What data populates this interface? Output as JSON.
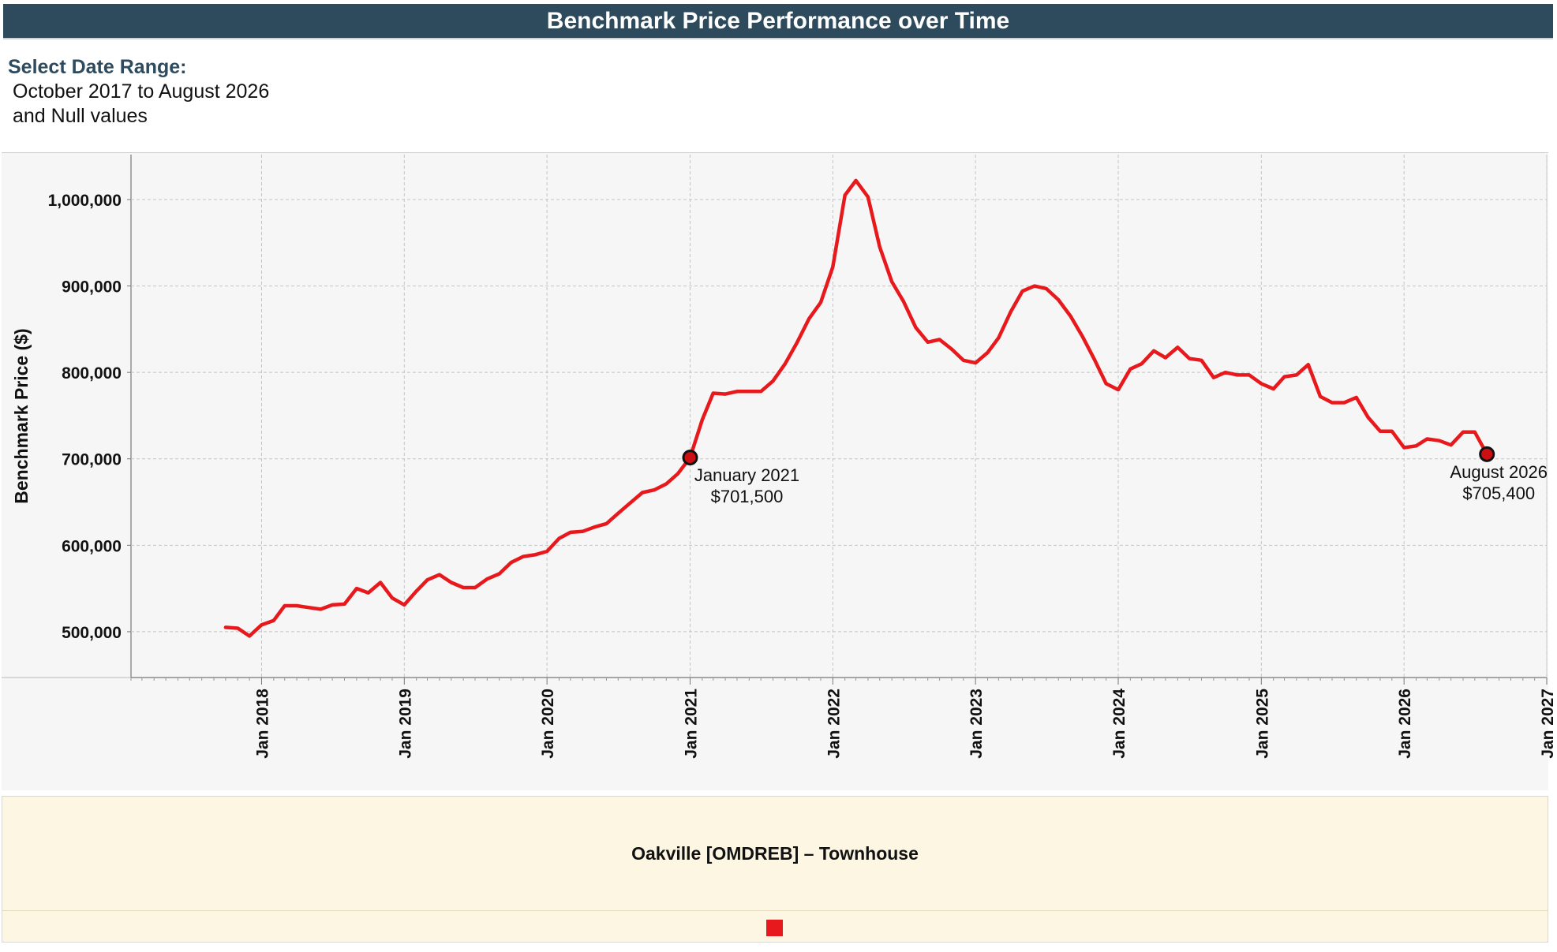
{
  "header": {
    "title": "Benchmark Price Performance over Time"
  },
  "filter": {
    "label": "Select Date Range:",
    "value_line1": "October 2017 to August 2026",
    "value_line2": "and Null values"
  },
  "legend": {
    "title": "Oakville [OMDREB] – Townhouse",
    "swatch_color": "#e8191c"
  },
  "colors": {
    "line": "#e8191c",
    "marker": "#cc0f12",
    "header_bg": "#2e4a5d",
    "plot_bg": "#f6f6f6"
  },
  "chart_data": {
    "type": "line",
    "title": "Benchmark Price Performance over Time",
    "ylabel": "Benchmark Price ($)",
    "xlabel": "",
    "ylim": [
      447000,
      1052000
    ],
    "xlim": [
      "2017-02-01",
      "2027-01-01"
    ],
    "y_ticks": [
      500000,
      600000,
      700000,
      800000,
      900000,
      1000000
    ],
    "y_tick_labels": [
      "500,000",
      "600,000",
      "700,000",
      "800,000",
      "900,000",
      "1,000,000"
    ],
    "x_ticks": [
      "2018-01-01",
      "2019-01-01",
      "2020-01-01",
      "2021-01-01",
      "2022-01-01",
      "2023-01-01",
      "2024-01-01",
      "2025-01-01",
      "2026-01-01",
      "2027-01-01"
    ],
    "x_tick_labels": [
      "Jan 2018",
      "Jan 2019",
      "Jan 2020",
      "Jan 2021",
      "Jan 2022",
      "Jan 2023",
      "Jan 2024",
      "Jan 2025",
      "Jan 2026",
      "Jan 2027"
    ],
    "grid": true,
    "series": [
      {
        "name": "Oakville [OMDREB] – Townhouse",
        "color": "#e8191c",
        "x": [
          "2017-10",
          "2017-11",
          "2017-12",
          "2018-01",
          "2018-02",
          "2018-03",
          "2018-04",
          "2018-05",
          "2018-06",
          "2018-07",
          "2018-08",
          "2018-09",
          "2018-10",
          "2018-11",
          "2018-12",
          "2019-01",
          "2019-02",
          "2019-03",
          "2019-04",
          "2019-05",
          "2019-06",
          "2019-07",
          "2019-08",
          "2019-09",
          "2019-10",
          "2019-11",
          "2019-12",
          "2020-01",
          "2020-02",
          "2020-03",
          "2020-04",
          "2020-05",
          "2020-06",
          "2020-07",
          "2020-08",
          "2020-09",
          "2020-10",
          "2020-11",
          "2020-12",
          "2021-01",
          "2021-02",
          "2021-03",
          "2021-04",
          "2021-05",
          "2021-06",
          "2021-07",
          "2021-08",
          "2021-09",
          "2021-10",
          "2021-11",
          "2021-12",
          "2022-01",
          "2022-02",
          "2022-03",
          "2022-04",
          "2022-05",
          "2022-06",
          "2022-07",
          "2022-08",
          "2022-09",
          "2022-10",
          "2022-11",
          "2022-12",
          "2023-01",
          "2023-02",
          "2023-03",
          "2023-04",
          "2023-05",
          "2023-06",
          "2023-07",
          "2023-08",
          "2023-09",
          "2023-10",
          "2023-11",
          "2023-12",
          "2024-01",
          "2024-02",
          "2024-03",
          "2024-04",
          "2024-05",
          "2024-06",
          "2024-07",
          "2024-08",
          "2024-09",
          "2024-10",
          "2024-11",
          "2024-12",
          "2025-01",
          "2025-02",
          "2025-03",
          "2025-04",
          "2025-05",
          "2025-06",
          "2025-07",
          "2025-08",
          "2025-09",
          "2025-10",
          "2025-11",
          "2025-12",
          "2026-01",
          "2026-02",
          "2026-03",
          "2026-04",
          "2026-05",
          "2026-06",
          "2026-07",
          "2026-08"
        ],
        "values": [
          505000,
          504000,
          495000,
          508000,
          513000,
          530000,
          530000,
          528000,
          526000,
          531000,
          532000,
          550000,
          545000,
          557000,
          539000,
          531000,
          547000,
          560000,
          566000,
          557000,
          551000,
          551000,
          561000,
          567000,
          580000,
          587000,
          589000,
          593000,
          608000,
          615000,
          616000,
          621000,
          625000,
          637000,
          649000,
          661000,
          664000,
          671000,
          683000,
          701500,
          745000,
          776000,
          775000,
          778000,
          778000,
          778000,
          790000,
          810000,
          834000,
          862000,
          881000,
          922000,
          1005000,
          1022000,
          1003000,
          945000,
          905000,
          882000,
          852000,
          835000,
          838000,
          827000,
          814000,
          811000,
          823000,
          840000,
          870000,
          894000,
          900000,
          897000,
          884000,
          865000,
          842000,
          815000,
          787000,
          780000,
          804000,
          810000,
          825000,
          817000,
          829000,
          816000,
          814000,
          794000,
          800000,
          797000,
          797000,
          787000,
          781000,
          795000,
          797000,
          809000,
          772000,
          765000,
          765000,
          771000,
          748000,
          732000,
          732000,
          713000,
          715000,
          723000,
          721000,
          716000,
          731000,
          731000,
          705400
        ]
      }
    ],
    "annotations": [
      {
        "x": "2021-01",
        "label_month": "January 2021",
        "label_value": "$701,500"
      },
      {
        "x": "2026-08",
        "label_month": "August 2026",
        "label_value": "$705,400"
      }
    ]
  }
}
